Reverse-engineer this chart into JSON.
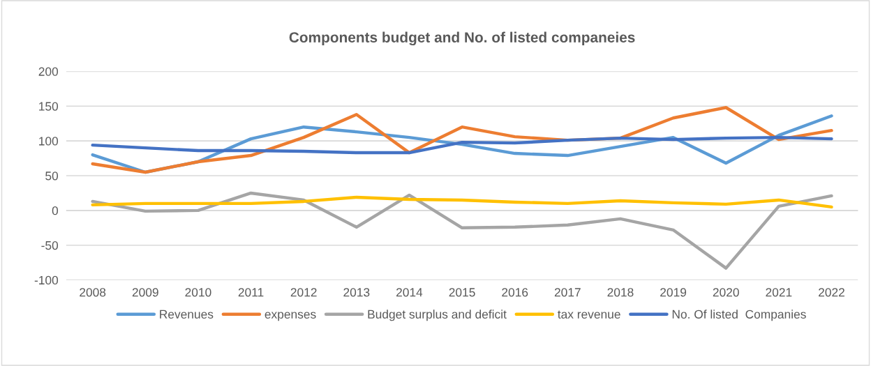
{
  "chart_data": {
    "type": "line",
    "title": "Components budget and No. of listed companeies",
    "categories": [
      "2008",
      "2009",
      "2010",
      "2011",
      "2012",
      "2013",
      "2014",
      "2015",
      "2016",
      "2017",
      "2018",
      "2019",
      "2020",
      "2021",
      "2022"
    ],
    "series": [
      {
        "name": "Revenues",
        "color": "#5b9bd5",
        "values": [
          80,
          55,
          70,
          103,
          120,
          113,
          105,
          95,
          82,
          79,
          92,
          105,
          68,
          108,
          136
        ]
      },
      {
        "name": "expenses",
        "color": "#ed7d31",
        "values": [
          67,
          55,
          70,
          79,
          105,
          138,
          83,
          120,
          106,
          101,
          104,
          133,
          148,
          102,
          115
        ]
      },
      {
        "name": "Budget surplus and deficit",
        "color": "#a5a5a5",
        "values": [
          13,
          -1,
          0,
          25,
          15,
          -24,
          22,
          -25,
          -24,
          -21,
          -12,
          -28,
          -83,
          6,
          21
        ]
      },
      {
        "name": "tax revenue",
        "color": "#ffc000",
        "values": [
          8,
          10,
          10,
          10,
          13,
          19,
          16,
          15,
          12,
          10,
          14,
          11,
          9,
          15,
          5
        ]
      },
      {
        "name": "No. Of listed  Companies",
        "color": "#4472c4",
        "values": [
          94,
          90,
          86,
          86,
          85,
          83,
          83,
          98,
          97,
          101,
          104,
          102,
          104,
          105,
          103
        ]
      }
    ],
    "ylim": [
      -100,
      200
    ],
    "yticks": [
      -100,
      -50,
      0,
      50,
      100,
      150,
      200
    ],
    "grid": "y",
    "legend": "bottom",
    "line_style": "solid"
  }
}
